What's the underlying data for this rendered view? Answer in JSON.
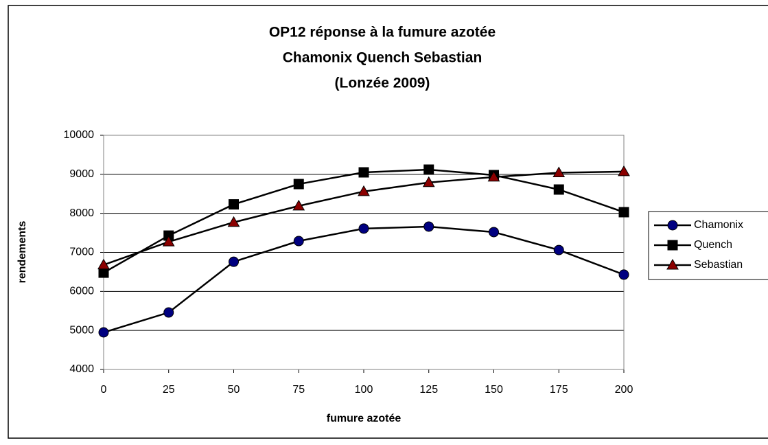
{
  "chart_data": {
    "type": "line",
    "title": [
      "OP12 réponse à la fumure azotée",
      "Chamonix Quench Sebastian",
      "(Lonzée 2009)"
    ],
    "x_label": "fumure azotée",
    "y_label": "rendements",
    "x": [
      0,
      25,
      50,
      75,
      100,
      125,
      150,
      175,
      200
    ],
    "xlim": [
      0,
      200
    ],
    "xticks": [
      0,
      25,
      50,
      75,
      100,
      125,
      150,
      175,
      200
    ],
    "ylim": [
      4000,
      10000
    ],
    "yticks": [
      4000,
      5000,
      6000,
      7000,
      8000,
      9000,
      10000
    ],
    "grid": true,
    "line_color": "#000000",
    "legend": "right",
    "series": [
      {
        "name": "Chamonix",
        "color": "#000080",
        "marker": "circle",
        "values": [
          4950,
          5460,
          6760,
          7290,
          7610,
          7660,
          7520,
          7060,
          6430
        ]
      },
      {
        "name": "Quench",
        "color": "#000000",
        "marker": "square",
        "values": [
          6480,
          7430,
          8230,
          8750,
          9050,
          9120,
          8980,
          8610,
          8030
        ]
      },
      {
        "name": "Sebastian",
        "color": "#8b0000",
        "marker": "triangle",
        "values": [
          6680,
          7270,
          7770,
          8190,
          8560,
          8790,
          8930,
          9040,
          9070
        ]
      }
    ]
  }
}
